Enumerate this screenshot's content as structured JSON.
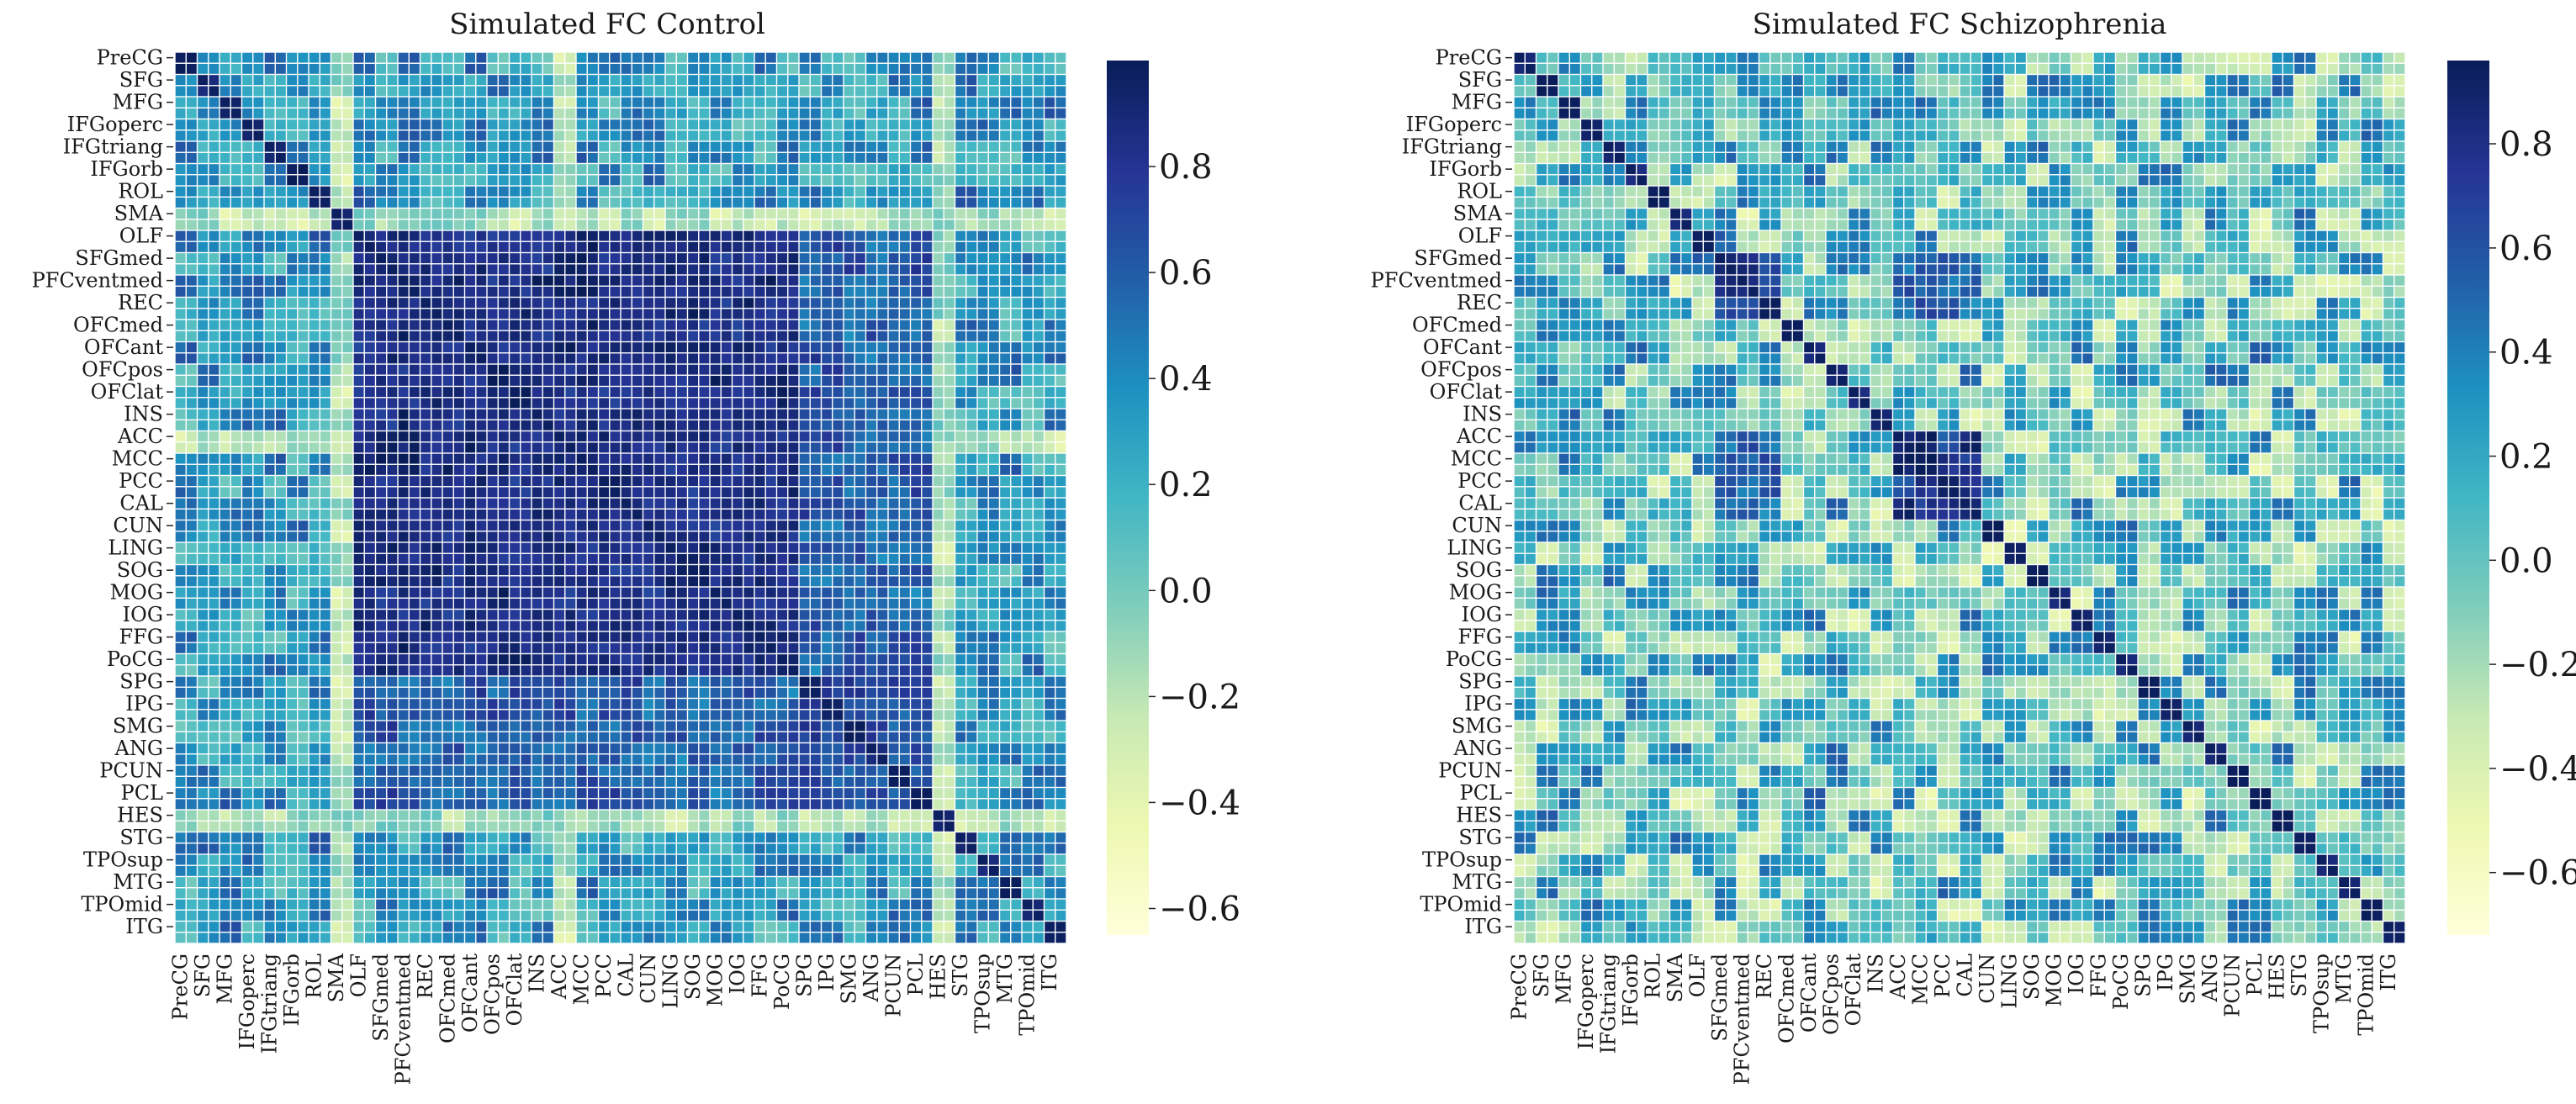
{
  "regions": [
    "PreCG",
    "SFG",
    "MFG",
    "IFGoperc",
    "IFGtriang",
    "IFGorb",
    "ROL",
    "SMA",
    "OLF",
    "SFGmed",
    "PFCventmed",
    "REC",
    "OFCmed",
    "OFCant",
    "OFCpos",
    "OFClat",
    "INS",
    "ACC",
    "MCC",
    "PCC",
    "CAL",
    "CUN",
    "LING",
    "SOG",
    "MOG",
    "IOG",
    "FFG",
    "PoCG",
    "SPG",
    "IPG",
    "SMG",
    "ANG",
    "PCUN",
    "PCL",
    "HES",
    "STG",
    "TPOsup",
    "MTG",
    "TPOmid",
    "ITG"
  ],
  "colorscale": [
    "#ffffd9",
    "#edf8b1",
    "#c7e9b4",
    "#7fcdbb",
    "#41b6c4",
    "#1d91c0",
    "#225ea8",
    "#253494",
    "#081d58"
  ],
  "chart_data": [
    {
      "type": "heatmap",
      "title": "Simulated FC Control",
      "panel": "control",
      "matrix_size": 80,
      "tick_labels": "regions (every second cell)",
      "colorbar": {
        "range": [
          -0.65,
          1.0
        ],
        "ticks": [
          -0.6,
          -0.4,
          -0.2,
          0.0,
          0.2,
          0.4,
          0.6,
          0.8
        ],
        "tick_labels": [
          "−0.6",
          "−0.4",
          "−0.2",
          "0.0",
          "0.2",
          "0.4",
          "0.6",
          "0.8"
        ]
      }
    },
    {
      "type": "heatmap",
      "title": "Simulated FC Schizophrenia",
      "panel": "schizophrenia",
      "matrix_size": 80,
      "tick_labels": "regions (every second cell)",
      "colorbar": {
        "range": [
          -0.72,
          0.96
        ],
        "ticks": [
          -0.6,
          -0.4,
          -0.2,
          0.0,
          0.2,
          0.4,
          0.6,
          0.8
        ],
        "tick_labels": [
          "−0.6",
          "−0.4",
          "−0.2",
          "0.0",
          "0.2",
          "0.4",
          "0.6",
          "0.8"
        ]
      }
    }
  ]
}
